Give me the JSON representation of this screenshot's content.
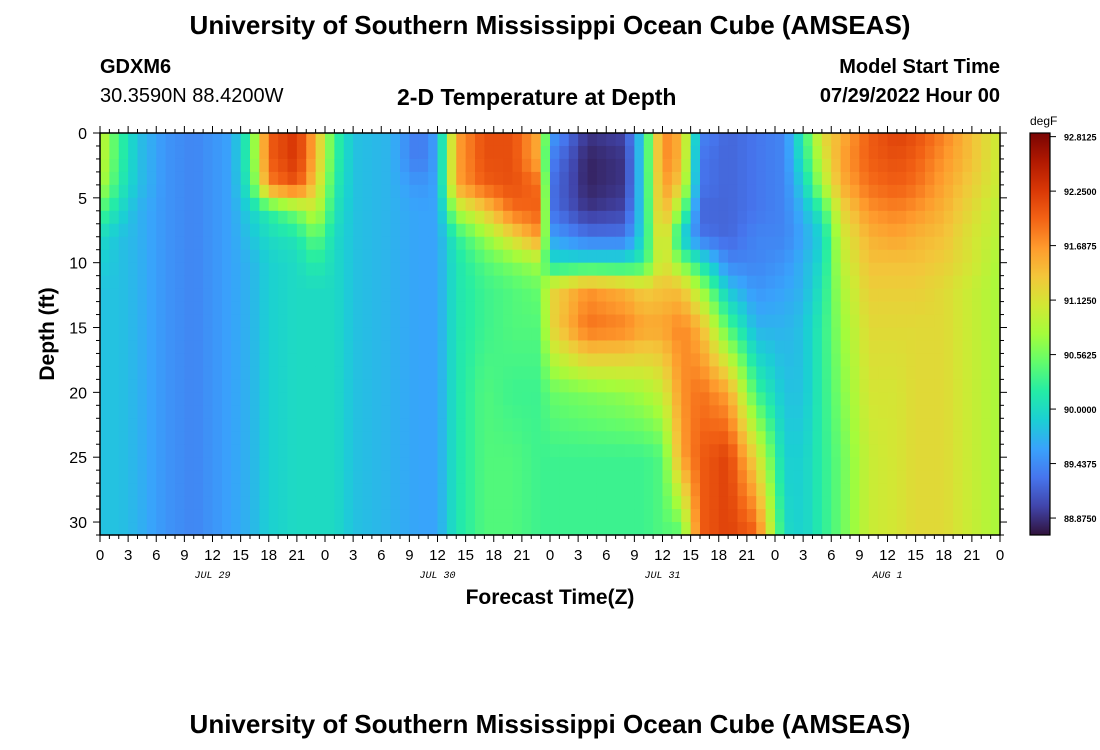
{
  "header": {
    "title": "University of Southern Mississippi Ocean Cube (AMSEAS)",
    "station": "GDXM6",
    "coords": "30.3590N  88.4200W",
    "subtitle": "2-D Temperature at Depth",
    "model_start_label": "Model Start Time",
    "model_start_value": "07/29/2022 Hour 00"
  },
  "footer": {
    "title": "University of Southern Mississippi Ocean Cube (AMSEAS)"
  },
  "chart_data": {
    "type": "heatmap",
    "xlabel": "Forecast Time(Z)",
    "ylabel": "Depth (ft)",
    "x_tick_labels": [
      "0",
      "3",
      "6",
      "9",
      "12",
      "15",
      "18",
      "21",
      "0",
      "3",
      "6",
      "9",
      "12",
      "15",
      "18",
      "21",
      "0",
      "3",
      "6",
      "9",
      "12",
      "15",
      "18",
      "21",
      "0",
      "3",
      "6",
      "9",
      "12",
      "15",
      "18",
      "21",
      "0"
    ],
    "day_labels": [
      "JUL 29",
      "JUL 30",
      "JUL 31",
      "AUG 1"
    ],
    "xlim_hours": [
      0,
      96
    ],
    "y_ticks": [
      0,
      5,
      10,
      15,
      20,
      25,
      30
    ],
    "ylim_ft": [
      0,
      31
    ],
    "colorbar": {
      "unit": "degF",
      "tick_labels": [
        "92.8125",
        "92.2500",
        "91.6875",
        "91.1250",
        "90.5625",
        "90.0000",
        "89.4375",
        "88.8750"
      ],
      "tick_values": [
        92.8125,
        92.25,
        91.6875,
        91.125,
        90.5625,
        90.0,
        89.4375,
        88.875
      ],
      "range": [
        88.7,
        92.85
      ],
      "colors": [
        "#30123b",
        "#4145ab",
        "#4675ed",
        "#39a2fc",
        "#1bcfd4",
        "#24eca6",
        "#61fc6c",
        "#a4fc3b",
        "#d1e834",
        "#f3c63a",
        "#fe9b2d",
        "#f36315",
        "#d93806",
        "#b11901",
        "#7a0403"
      ]
    },
    "depth_profile_ft": [
      0,
      2,
      4,
      6,
      8,
      10,
      12,
      15,
      20,
      25,
      31
    ],
    "profiles": [
      {
        "hour": 0,
        "temps": [
          91.0,
          91.0,
          90.9,
          90.4,
          90.0,
          89.9,
          89.8,
          89.8,
          89.8,
          89.8,
          89.8
        ]
      },
      {
        "hour": 2,
        "temps": [
          90.3,
          90.3,
          90.2,
          90.0,
          89.8,
          89.8,
          89.8,
          89.8,
          89.8,
          89.8,
          89.8
        ]
      },
      {
        "hour": 4,
        "temps": [
          89.8,
          89.8,
          89.8,
          89.7,
          89.7,
          89.7,
          89.7,
          89.7,
          89.7,
          89.7,
          89.7
        ]
      },
      {
        "hour": 7,
        "temps": [
          89.5,
          89.5,
          89.5,
          89.5,
          89.5,
          89.5,
          89.5,
          89.5,
          89.5,
          89.5,
          89.5
        ]
      },
      {
        "hour": 10,
        "temps": [
          89.4,
          89.4,
          89.4,
          89.4,
          89.4,
          89.4,
          89.4,
          89.4,
          89.4,
          89.4,
          89.4
        ]
      },
      {
        "hour": 14,
        "temps": [
          89.6,
          89.6,
          89.6,
          89.6,
          89.6,
          89.6,
          89.6,
          89.6,
          89.6,
          89.6,
          89.6
        ]
      },
      {
        "hour": 16,
        "temps": [
          90.3,
          90.3,
          90.2,
          89.9,
          89.8,
          89.7,
          89.7,
          89.7,
          89.7,
          89.7,
          89.7
        ]
      },
      {
        "hour": 18,
        "temps": [
          92.0,
          92.0,
          91.8,
          90.2,
          90.0,
          89.9,
          89.9,
          89.9,
          89.9,
          89.9,
          89.9
        ]
      },
      {
        "hour": 21,
        "temps": [
          92.3,
          92.3,
          92.1,
          90.6,
          90.1,
          90.0,
          90.0,
          90.0,
          90.0,
          90.0,
          90.0
        ]
      },
      {
        "hour": 23,
        "temps": [
          91.5,
          91.5,
          91.3,
          91.0,
          90.5,
          90.2,
          90.0,
          90.0,
          90.0,
          90.0,
          90.0
        ]
      },
      {
        "hour": 25,
        "temps": [
          90.3,
          90.3,
          90.2,
          90.1,
          90.0,
          90.0,
          90.0,
          90.0,
          90.0,
          90.0,
          90.0
        ]
      },
      {
        "hour": 27,
        "temps": [
          89.8,
          89.8,
          89.8,
          89.8,
          89.8,
          89.8,
          89.8,
          89.8,
          89.8,
          89.8,
          89.8
        ]
      },
      {
        "hour": 31,
        "temps": [
          89.7,
          89.7,
          89.7,
          89.7,
          89.7,
          89.7,
          89.7,
          89.7,
          89.7,
          89.7,
          89.7
        ]
      },
      {
        "hour": 34,
        "temps": [
          89.3,
          89.3,
          89.5,
          89.6,
          89.6,
          89.6,
          89.6,
          89.6,
          89.6,
          89.6,
          89.6
        ]
      },
      {
        "hour": 36,
        "temps": [
          89.6,
          89.6,
          89.6,
          89.6,
          89.6,
          89.6,
          89.6,
          89.6,
          89.6,
          89.6,
          89.6
        ]
      },
      {
        "hour": 38,
        "temps": [
          91.6,
          91.6,
          91.6,
          90.8,
          90.2,
          90.1,
          90.1,
          90.1,
          90.1,
          90.1,
          90.1
        ]
      },
      {
        "hour": 41,
        "temps": [
          92.1,
          92.1,
          92.0,
          91.3,
          90.7,
          90.4,
          90.3,
          90.3,
          90.4,
          90.4,
          90.4
        ]
      },
      {
        "hour": 44,
        "temps": [
          92.1,
          92.1,
          92.1,
          91.9,
          91.2,
          90.6,
          90.4,
          90.4,
          90.3,
          90.4,
          90.4
        ]
      },
      {
        "hour": 47,
        "temps": [
          91.5,
          91.5,
          91.9,
          92.0,
          91.7,
          90.8,
          90.5,
          90.4,
          90.3,
          90.3,
          90.3
        ]
      },
      {
        "hour": 48,
        "temps": [
          89.6,
          89.4,
          89.3,
          89.3,
          89.6,
          90.0,
          91.2,
          91.2,
          90.5,
          90.3,
          90.3
        ]
      },
      {
        "hour": 52,
        "temps": [
          88.9,
          88.8,
          88.8,
          88.9,
          89.3,
          90.0,
          91.7,
          91.9,
          90.6,
          90.3,
          90.3
        ]
      },
      {
        "hour": 56,
        "temps": [
          89.0,
          88.9,
          88.9,
          89.0,
          89.3,
          90.0,
          91.5,
          91.8,
          90.7,
          90.3,
          90.3
        ]
      },
      {
        "hour": 58,
        "temps": [
          90.0,
          90.0,
          90.0,
          90.0,
          90.0,
          90.2,
          91.3,
          91.6,
          90.8,
          90.3,
          90.3
        ]
      },
      {
        "hour": 60,
        "temps": [
          91.8,
          91.8,
          91.7,
          91.6,
          91.4,
          91.2,
          91.4,
          91.6,
          91.0,
          90.4,
          90.4
        ]
      },
      {
        "hour": 62,
        "temps": [
          91.5,
          91.5,
          91.3,
          90.6,
          89.9,
          90.6,
          91.4,
          91.8,
          91.7,
          91.6,
          90.4
        ]
      },
      {
        "hour": 64,
        "temps": [
          89.4,
          89.3,
          89.3,
          89.2,
          89.3,
          90.1,
          90.8,
          91.5,
          91.9,
          92.0,
          92.0
        ]
      },
      {
        "hour": 67,
        "temps": [
          89.2,
          89.2,
          89.2,
          89.2,
          89.2,
          89.4,
          89.8,
          90.4,
          91.6,
          92.2,
          92.2
        ]
      },
      {
        "hour": 70,
        "temps": [
          89.3,
          89.3,
          89.3,
          89.3,
          89.4,
          89.4,
          89.5,
          89.7,
          90.3,
          91.2,
          92.0
        ]
      },
      {
        "hour": 73,
        "temps": [
          89.4,
          89.4,
          89.4,
          89.4,
          89.4,
          89.5,
          89.6,
          89.7,
          89.8,
          89.9,
          90.0
        ]
      },
      {
        "hour": 75,
        "temps": [
          90.2,
          90.1,
          89.9,
          89.7,
          89.6,
          89.7,
          89.7,
          89.8,
          89.8,
          89.9,
          89.9
        ]
      },
      {
        "hour": 77,
        "temps": [
          91.2,
          91.0,
          90.8,
          90.2,
          89.9,
          90.0,
          90.1,
          90.2,
          90.2,
          90.2,
          90.2
        ]
      },
      {
        "hour": 79,
        "temps": [
          91.5,
          91.6,
          91.5,
          91.2,
          91.0,
          90.9,
          90.8,
          90.7,
          90.6,
          90.5,
          90.5
        ]
      },
      {
        "hour": 82,
        "temps": [
          92.0,
          92.0,
          91.9,
          91.7,
          91.5,
          91.4,
          91.3,
          91.2,
          91.1,
          91.0,
          91.0
        ]
      },
      {
        "hour": 85,
        "temps": [
          92.2,
          92.1,
          92.0,
          91.8,
          91.6,
          91.4,
          91.3,
          91.2,
          91.1,
          91.1,
          91.1
        ]
      },
      {
        "hour": 87,
        "temps": [
          92.1,
          92.0,
          91.9,
          91.7,
          91.5,
          91.4,
          91.3,
          91.2,
          91.2,
          91.2,
          91.2
        ]
      },
      {
        "hour": 90,
        "temps": [
          91.8,
          91.7,
          91.6,
          91.5,
          91.4,
          91.3,
          91.2,
          91.2,
          91.2,
          91.2,
          91.2
        ]
      },
      {
        "hour": 93,
        "temps": [
          91.4,
          91.4,
          91.3,
          91.2,
          91.1,
          91.1,
          91.0,
          91.0,
          91.0,
          91.0,
          91.0
        ]
      },
      {
        "hour": 96,
        "temps": [
          91.0,
          91.0,
          91.0,
          90.9,
          90.9,
          90.8,
          90.8,
          90.8,
          90.8,
          90.8,
          90.8
        ]
      }
    ]
  }
}
